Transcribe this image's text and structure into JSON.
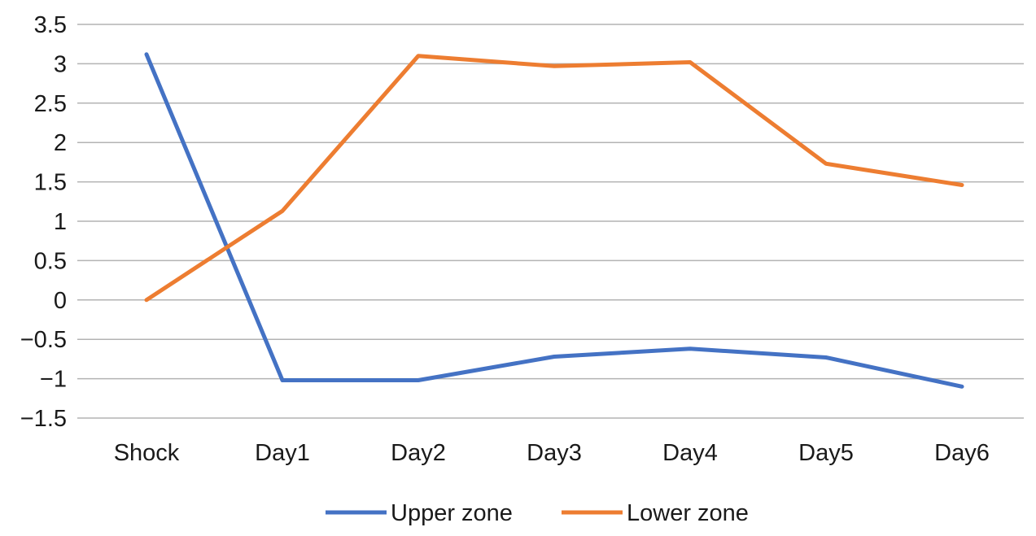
{
  "chart_data": {
    "type": "line",
    "title": "",
    "xlabel": "",
    "ylabel": "",
    "categories": [
      "Shock",
      "Day1",
      "Day2",
      "Day3",
      "Day4",
      "Day5",
      "Day6"
    ],
    "ylim": [
      -1.5,
      3.5
    ],
    "y_ticks": [
      3.5,
      3,
      2.5,
      2,
      1.5,
      1,
      0.5,
      0,
      -0.5,
      -1,
      -1.5
    ],
    "y_tick_labels": [
      "3.5",
      "3",
      "2.5",
      "2",
      "1.5",
      "1",
      "0.5",
      "0",
      "−0.5",
      "−1",
      "−1.5"
    ],
    "grid": "horizontal",
    "legend_position": "bottom",
    "series": [
      {
        "name": "Upper zone",
        "color": "#4472c4",
        "values": [
          3.12,
          -1.02,
          -1.02,
          -0.72,
          -0.62,
          -0.73,
          -1.1
        ]
      },
      {
        "name": "Lower zone",
        "color": "#ed7d31",
        "values": [
          0.0,
          1.13,
          3.1,
          2.97,
          3.02,
          1.73,
          1.46
        ]
      }
    ]
  }
}
